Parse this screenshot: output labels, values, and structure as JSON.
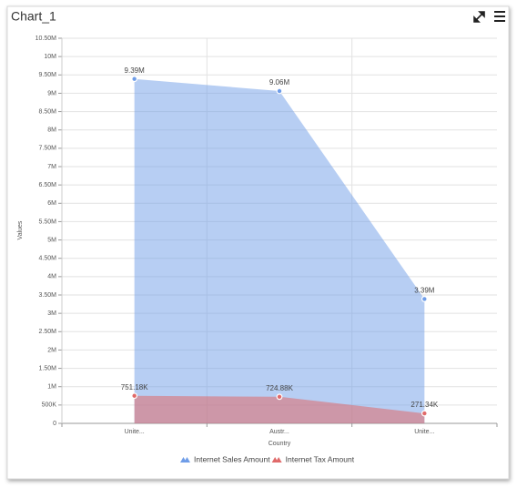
{
  "chart_data": {
    "type": "area",
    "title": "Chart_1",
    "x_label": "Country",
    "y_label": "Values",
    "categories": [
      "Unite...",
      "Austr...",
      "Unite..."
    ],
    "series": [
      {
        "name": "Internet Sales Amount",
        "color": "#6f9de8",
        "values": [
          9390000,
          9060000,
          3390000
        ],
        "value_labels": [
          "9.39M",
          "9.06M",
          "3.39M"
        ]
      },
      {
        "name": "Internet Tax Amount",
        "color": "#e06a6a",
        "values": [
          751180,
          724880,
          271340
        ],
        "value_labels": [
          "751.18K",
          "724.88K",
          "271.34K"
        ]
      }
    ],
    "ylim": [
      0,
      10500000
    ],
    "yticks": [
      0,
      {
        "value": 500000,
        "label": "500K"
      },
      {
        "value": 1000000,
        "label": "1M"
      },
      {
        "value": 1500000,
        "label": "1.50M"
      },
      {
        "value": 2000000,
        "label": "2M"
      },
      {
        "value": 2500000,
        "label": "2.50M"
      },
      {
        "value": 3000000,
        "label": "3M"
      },
      {
        "value": 3500000,
        "label": "3.50M"
      },
      {
        "value": 4000000,
        "label": "4M"
      },
      {
        "value": 4500000,
        "label": "4.50M"
      },
      {
        "value": 5000000,
        "label": "5M"
      },
      {
        "value": 5500000,
        "label": "5.50M"
      },
      {
        "value": 6000000,
        "label": "6M"
      },
      {
        "value": 6500000,
        "label": "6.50M"
      },
      {
        "value": 7000000,
        "label": "7M"
      },
      {
        "value": 7500000,
        "label": "7.50M"
      },
      {
        "value": 8000000,
        "label": "8M"
      },
      {
        "value": 8500000,
        "label": "8.50M"
      },
      {
        "value": 9000000,
        "label": "9M"
      },
      {
        "value": 9500000,
        "label": "9.50M"
      },
      {
        "value": 10000000,
        "label": "10M"
      },
      {
        "value": 10500000,
        "label": "10.50M"
      }
    ],
    "grid": true,
    "legend": "bottom"
  }
}
